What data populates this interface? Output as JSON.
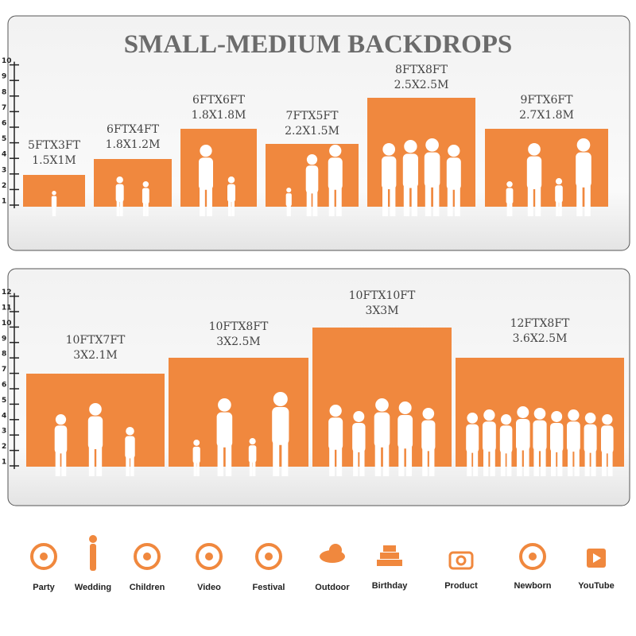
{
  "header": {
    "title": "SMALL-MEDIUM BACKDROPS"
  },
  "panels": [
    {
      "ruler": [
        1,
        2,
        3,
        4,
        5,
        6,
        7,
        8,
        9,
        10
      ],
      "backdrops": [
        {
          "size": "5FTX3FT",
          "metric": "1.5X1M"
        },
        {
          "size": "6FTX4FT",
          "metric": "1.8X1.2M"
        },
        {
          "size": "6FTX6FT",
          "metric": "1.8X1.8M"
        },
        {
          "size": "7FTX5FT",
          "metric": "2.2X1.5M"
        },
        {
          "size": "8FTX8FT",
          "metric": "2.5X2.5M"
        },
        {
          "size": "9FTX6FT",
          "metric": "2.7X1.8M"
        }
      ]
    },
    {
      "ruler": [
        1,
        2,
        3,
        4,
        5,
        6,
        7,
        8,
        9,
        10,
        11,
        12
      ],
      "backdrops": [
        {
          "size": "10FTX7FT",
          "metric": "3X2.1M"
        },
        {
          "size": "10FTX8FT",
          "metric": "3X2.5M"
        },
        {
          "size": "10FTX10FT",
          "metric": "3X3M"
        },
        {
          "size": "12FTX8FT",
          "metric": "3.6X2.5M"
        }
      ]
    }
  ],
  "icons": [
    {
      "label": "Party"
    },
    {
      "label": "Wedding"
    },
    {
      "label": "Children"
    },
    {
      "label": "Video"
    },
    {
      "label": "Festival"
    },
    {
      "label": "Outdoor"
    },
    {
      "label": "Birthday"
    },
    {
      "label": "Product"
    },
    {
      "label": "Newborn"
    },
    {
      "label": "YouTube"
    }
  ]
}
